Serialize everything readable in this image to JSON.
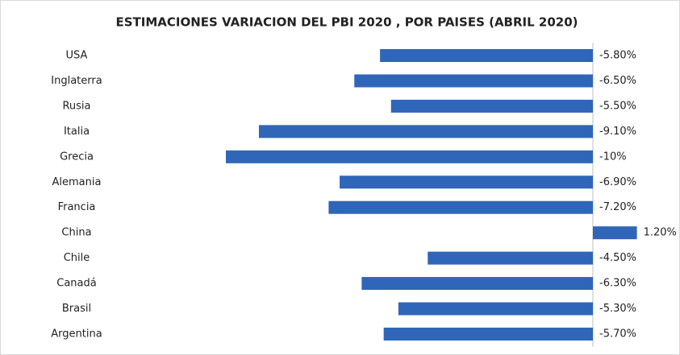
{
  "chart_data": {
    "type": "bar",
    "orientation": "horizontal",
    "title": "ESTIMACIONES VARIACION DEL PBI 2020 , POR PAISES (ABRIL 2020)",
    "categories": [
      "USA",
      "Inglaterra",
      "Rusia",
      "Italia",
      "Grecia",
      "Alemania",
      "Francia",
      "China",
      "Chile",
      "Canadá",
      "Brasil",
      "Argentina"
    ],
    "values": [
      -5.8,
      -6.5,
      -5.5,
      -9.1,
      -10,
      -6.9,
      -7.2,
      1.2,
      -4.5,
      -6.3,
      -5.3,
      -5.7
    ],
    "value_labels": [
      "-5.80%",
      "-6.50%",
      "-5.50%",
      "-9.10%",
      "-10%",
      "-6.90%",
      "-7.20%",
      "1.20%",
      "-4.50%",
      "-6.30%",
      "-5.30%",
      "-5.70%"
    ],
    "color": "#2f66b9"
  }
}
